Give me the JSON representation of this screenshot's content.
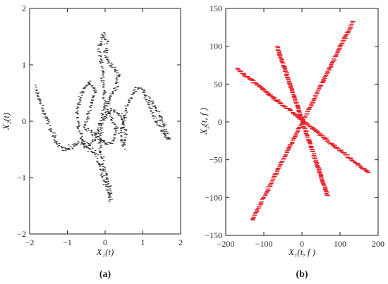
{
  "panels": {
    "a": {
      "caption": "(a)",
      "xlabel": "X₁(t)",
      "ylabel": "X₂(t)"
    },
    "b": {
      "caption": "(b)",
      "xlabel": "X₁(t, f )",
      "ylabel": "X₂(t, f )"
    }
  },
  "chart_data": [
    {
      "type": "scatter",
      "panel": "a",
      "xlabel": "X₁(t)",
      "ylabel": "X₂(t)",
      "xlim": [
        -2,
        2
      ],
      "ylim": [
        -2,
        2
      ],
      "xticks": [
        -2,
        -1,
        0,
        1,
        2
      ],
      "yticks": [
        -2,
        -1,
        0,
        1,
        2
      ],
      "grid": false,
      "color": "#333333",
      "trajectory_path": [
        [
          -1.85,
          0.6
        ],
        [
          -1.7,
          0.3
        ],
        [
          -1.55,
          0.05
        ],
        [
          -1.45,
          -0.15
        ],
        [
          -1.3,
          -0.35
        ],
        [
          -1.1,
          -0.5
        ],
        [
          -0.85,
          -0.45
        ],
        [
          -0.6,
          -0.4
        ],
        [
          -0.4,
          -0.5
        ],
        [
          -0.25,
          -0.55
        ],
        [
          -0.15,
          -0.75
        ],
        [
          -0.05,
          -1.0
        ],
        [
          0.05,
          -1.2
        ],
        [
          0.15,
          -1.4
        ],
        [
          0.1,
          -1.1
        ],
        [
          -0.05,
          -0.75
        ],
        [
          -0.15,
          -0.45
        ],
        [
          -0.1,
          -0.05
        ],
        [
          0.0,
          0.3
        ],
        [
          -0.05,
          0.7
        ],
        [
          -0.1,
          1.05
        ],
        [
          -0.15,
          1.3
        ],
        [
          -0.05,
          1.55
        ],
        [
          0.05,
          1.4
        ],
        [
          0.0,
          1.15
        ],
        [
          0.2,
          0.95
        ],
        [
          0.35,
          0.85
        ],
        [
          0.3,
          0.6
        ],
        [
          0.1,
          0.4
        ],
        [
          0.05,
          0.2
        ],
        [
          0.2,
          0.0
        ],
        [
          0.3,
          -0.15
        ],
        [
          0.2,
          -0.35
        ],
        [
          0.0,
          -0.4
        ],
        [
          -0.15,
          -0.3
        ],
        [
          -0.35,
          -0.2
        ],
        [
          -0.55,
          -0.1
        ],
        [
          -0.4,
          0.2
        ],
        [
          -0.25,
          0.55
        ],
        [
          -0.45,
          0.7
        ],
        [
          -0.65,
          0.45
        ],
        [
          -0.75,
          0.15
        ],
        [
          -0.65,
          -0.25
        ],
        [
          -0.5,
          -0.45
        ],
        [
          -0.3,
          -0.35
        ],
        [
          -0.1,
          0.0
        ],
        [
          0.15,
          0.2
        ],
        [
          0.45,
          0.1
        ],
        [
          0.55,
          -0.2
        ],
        [
          0.5,
          -0.45
        ],
        [
          0.4,
          -0.25
        ],
        [
          0.55,
          0.2
        ],
        [
          0.8,
          0.6
        ],
        [
          1.0,
          0.55
        ],
        [
          1.1,
          0.4
        ],
        [
          1.25,
          0.15
        ],
        [
          1.4,
          -0.05
        ],
        [
          1.55,
          -0.2
        ],
        [
          1.7,
          -0.35
        ],
        [
          1.6,
          -0.15
        ],
        [
          1.45,
          0.1
        ],
        [
          1.3,
          0.3
        ],
        [
          1.15,
          0.45
        ]
      ]
    },
    {
      "type": "scatter",
      "panel": "b",
      "xlabel": "X₁(t, f )",
      "ylabel": "X₂(t, f )",
      "xlim": [
        -200,
        200
      ],
      "ylim": [
        -150,
        150
      ],
      "xticks": [
        -200,
        -100,
        0,
        100,
        200
      ],
      "yticks": [
        -150,
        -100,
        -50,
        0,
        50,
        100,
        150
      ],
      "grid": false,
      "color": "#e8202a",
      "series": [
        {
          "from": [
            -170,
            70
          ],
          "to": [
            175,
            -67
          ]
        },
        {
          "from": [
            -130,
            -130
          ],
          "to": [
            135,
            133
          ]
        },
        {
          "from": [
            -65,
            100
          ],
          "to": [
            67,
            -97
          ]
        }
      ]
    }
  ]
}
